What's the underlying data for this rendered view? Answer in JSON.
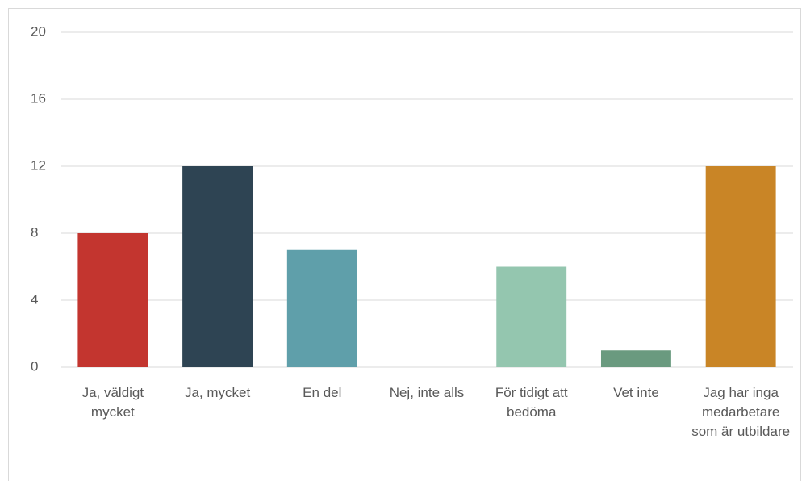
{
  "chart_data": {
    "type": "bar",
    "categories": [
      "Ja, väldigt mycket",
      "Ja, mycket",
      "En del",
      "Nej, inte alls",
      "För tidigt att bedöma",
      "Vet inte",
      "Jag har inga medarbetare som är utbildare"
    ],
    "values": [
      8,
      12,
      7,
      0,
      6,
      1,
      12
    ],
    "colors": [
      "#c3352f",
      "#2e4453",
      "#5f9faa",
      null,
      "#94c6af",
      "#6a9a7f",
      "#c98526"
    ],
    "ylim": [
      0,
      20
    ],
    "yticks": [
      0,
      4,
      8,
      12,
      16,
      20
    ],
    "grid": true
  }
}
